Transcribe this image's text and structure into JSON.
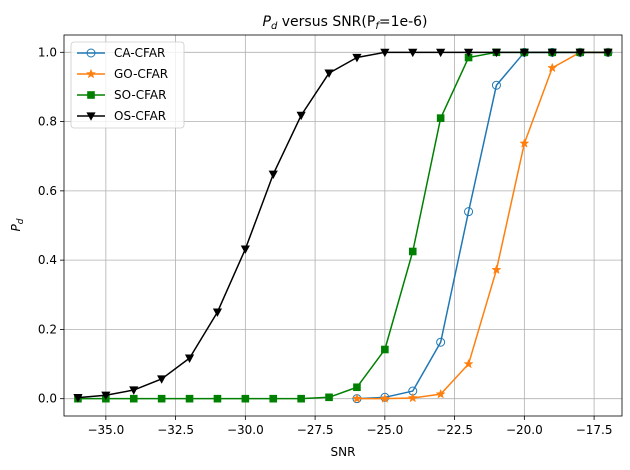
{
  "chart_data": {
    "type": "line",
    "title": {
      "main": "P",
      "main_sub": "d",
      "middle": " versus SNR(P",
      "f_sub": "f",
      "tail": "=1e-6)"
    },
    "xlabel": "SNR",
    "ylabel": {
      "main": "P",
      "sub": "d"
    },
    "xlim": [
      -36.5,
      -16.5
    ],
    "ylim": [
      -0.05,
      1.05
    ],
    "xticks": [
      -35.0,
      -32.5,
      -30.0,
      -27.5,
      -25.0,
      -22.5,
      -20.0,
      -17.5
    ],
    "xtick_labels": [
      "−35.0",
      "−32.5",
      "−30.0",
      "−27.5",
      "−25.0",
      "−22.5",
      "−20.0",
      "−17.5"
    ],
    "yticks": [
      0.0,
      0.2,
      0.4,
      0.6,
      0.8,
      1.0
    ],
    "ytick_labels": [
      "0.0",
      "0.2",
      "0.4",
      "0.6",
      "0.8",
      "1.0"
    ],
    "grid": true,
    "legend_position": "top-left",
    "series": [
      {
        "name": "CA-CFAR",
        "color": "#1f77b4",
        "marker": "circle-open",
        "x": [
          -26,
          -25,
          -24,
          -23,
          -22,
          -21,
          -20,
          -19,
          -18,
          -17
        ],
        "y": [
          0.0,
          0.004,
          0.022,
          0.163,
          0.54,
          0.905,
          1.0,
          1.0,
          1.0,
          1.0
        ]
      },
      {
        "name": "GO-CFAR",
        "color": "#ff7f0e",
        "marker": "star",
        "x": [
          -26,
          -25,
          -24,
          -23,
          -22,
          -21,
          -20,
          -19,
          -18,
          -17
        ],
        "y": [
          0.0,
          0.0,
          0.002,
          0.013,
          0.1,
          0.372,
          0.737,
          0.955,
          1.0,
          1.0
        ]
      },
      {
        "name": "SO-CFAR",
        "color": "#008000",
        "marker": "square",
        "x": [
          -36,
          -35,
          -34,
          -33,
          -32,
          -31,
          -30,
          -29,
          -28,
          -27,
          -26,
          -25,
          -24,
          -23,
          -22,
          -21,
          -20,
          -19,
          -18,
          -17
        ],
        "y": [
          0.0,
          0.0,
          0.0,
          0.0,
          0.0,
          0.0,
          0.0,
          0.0,
          0.0,
          0.004,
          0.033,
          0.142,
          0.425,
          0.81,
          0.985,
          1.0,
          1.0,
          1.0,
          1.0,
          1.0
        ]
      },
      {
        "name": "OS-CFAR",
        "color": "#000000",
        "marker": "triangle-down",
        "x": [
          -36,
          -35,
          -34,
          -33,
          -32,
          -31,
          -30,
          -29,
          -28,
          -27,
          -26,
          -25,
          -24,
          -23,
          -22,
          -21,
          -20,
          -19,
          -18,
          -17
        ],
        "y": [
          0.003,
          0.01,
          0.025,
          0.057,
          0.117,
          0.25,
          0.432,
          0.648,
          0.818,
          0.94,
          0.985,
          1.0,
          1.0,
          1.0,
          1.0,
          1.0,
          1.0,
          1.0,
          1.0,
          1.0
        ]
      }
    ]
  }
}
